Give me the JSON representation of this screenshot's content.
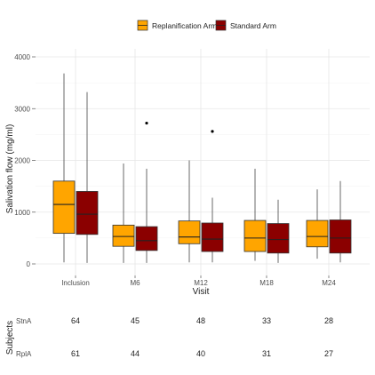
{
  "chart_data": {
    "type": "box",
    "xlabel": "Visit",
    "ylabel": "Salivation flow (mg/ml)",
    "ylim": [
      0,
      4000
    ],
    "yticks": [
      0,
      1000,
      2000,
      3000,
      4000
    ],
    "categories": [
      "Inclusion",
      "M6",
      "M12",
      "M18",
      "M24"
    ],
    "grid": true,
    "legend_position": "top",
    "series": [
      {
        "name": "Replanification Arm",
        "color": "#FFA500",
        "boxes": [
          {
            "min": 30,
            "q1": 590,
            "median": 1150,
            "q3": 1600,
            "max": 3680,
            "outliers": []
          },
          {
            "min": 20,
            "q1": 340,
            "median": 530,
            "q3": 750,
            "max": 1940,
            "outliers": []
          },
          {
            "min": 30,
            "q1": 390,
            "median": 520,
            "q3": 830,
            "max": 2000,
            "outliers": []
          },
          {
            "min": 60,
            "q1": 240,
            "median": 500,
            "q3": 840,
            "max": 1840,
            "outliers": []
          },
          {
            "min": 100,
            "q1": 330,
            "median": 530,
            "q3": 840,
            "max": 1440,
            "outliers": []
          }
        ]
      },
      {
        "name": "Standard Arm",
        "color": "#8B0000",
        "boxes": [
          {
            "min": 20,
            "q1": 570,
            "median": 960,
            "q3": 1400,
            "max": 3320,
            "outliers": []
          },
          {
            "min": 20,
            "q1": 260,
            "median": 450,
            "q3": 720,
            "max": 1840,
            "outliers": [
              2720
            ]
          },
          {
            "min": 30,
            "q1": 240,
            "median": 480,
            "q3": 790,
            "max": 1280,
            "outliers": [
              2560
            ]
          },
          {
            "min": 20,
            "q1": 210,
            "median": 470,
            "q3": 780,
            "max": 1240,
            "outliers": []
          },
          {
            "min": 30,
            "q1": 210,
            "median": 500,
            "q3": 850,
            "max": 1600,
            "outliers": []
          }
        ]
      }
    ],
    "subjects_table": {
      "title": "Subjects",
      "rows": [
        {
          "label": "StnA",
          "values": [
            64,
            45,
            48,
            33,
            28
          ]
        },
        {
          "label": "RplA",
          "values": [
            61,
            44,
            40,
            31,
            27
          ]
        }
      ]
    }
  }
}
